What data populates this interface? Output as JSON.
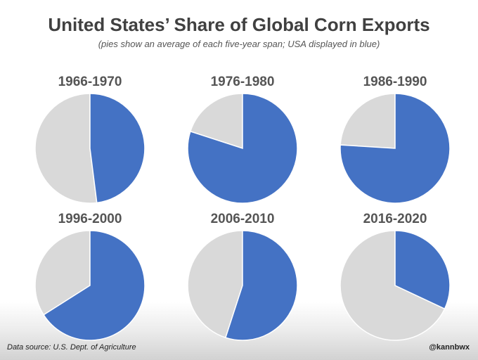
{
  "chart_data": {
    "type": "pie",
    "title": "United States’ Share of Global Corn Exports",
    "subtitle": "(pies show an average of each five-year span; USA displayed in blue)",
    "series_colors": {
      "usa": "#4472c4",
      "other": "#d9d9d9"
    },
    "pies": [
      {
        "label": "1966-1970",
        "usa_share": 0.48
      },
      {
        "label": "1976-1980",
        "usa_share": 0.8
      },
      {
        "label": "1986-1990",
        "usa_share": 0.76
      },
      {
        "label": "1996-2000",
        "usa_share": 0.66
      },
      {
        "label": "2006-2010",
        "usa_share": 0.55
      },
      {
        "label": "2016-2020",
        "usa_share": 0.32
      }
    ]
  },
  "footer": {
    "source": "Data source: U.S. Dept. of Agriculture",
    "credit": "@kannbwx"
  }
}
